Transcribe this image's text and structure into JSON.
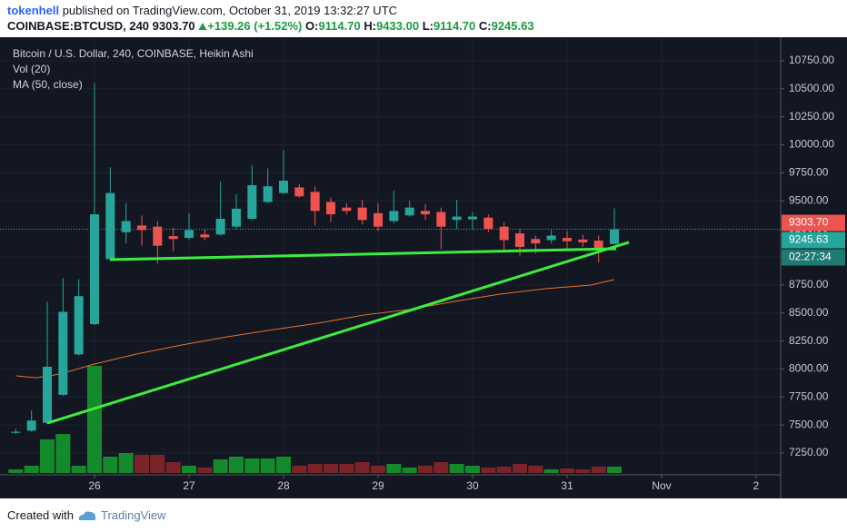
{
  "header": {
    "author": "tokenhell",
    "published": "published on TradingView.com, October 31, 2019 13:32:27 UTC",
    "symbol": "COINBASE:BTCUSD, 240",
    "last": "9303.70",
    "change": "+139.26 (+1.52%)",
    "ohlc": [
      {
        "label": "O:",
        "value": "9114.70"
      },
      {
        "label": "H:",
        "value": "9433.00"
      },
      {
        "label": "L:",
        "value": "9114.70"
      },
      {
        "label": "C:",
        "value": "9245.63"
      }
    ]
  },
  "chart_data": {
    "type": "candlestick",
    "title": "Bitcoin / U.S. Dollar, 240, COINBASE, Heikin Ashi",
    "x": [
      25.1667,
      25.3333,
      25.5,
      25.6667,
      25.8333,
      26,
      26.1667,
      26.3333,
      26.5,
      26.6667,
      26.8333,
      27,
      27.1667,
      27.3333,
      27.5,
      27.6667,
      27.8333,
      28,
      28.1667,
      28.3333,
      28.5,
      28.6667,
      28.8333,
      29,
      29.1667,
      29.3333,
      29.5,
      29.6667,
      29.8333,
      30,
      30.1667,
      30.3333,
      30.5,
      30.6667,
      30.8333,
      31,
      31.1667,
      31.3333,
      31.5
    ],
    "open": [
      7430,
      7450,
      7520,
      7770,
      8130,
      8400,
      8980,
      9220,
      9280,
      9270,
      9185,
      9170,
      9200,
      9200,
      9270,
      9340,
      9490,
      9570,
      9620,
      9580,
      9490,
      9440,
      9440,
      9390,
      9320,
      9370,
      9410,
      9400,
      9330,
      9335,
      9350,
      9270,
      9210,
      9160,
      9150,
      9170,
      9155,
      9145,
      9114.7
    ],
    "high": [
      7470,
      7630,
      8600,
      8810,
      8800,
      10550,
      9800,
      9480,
      9370,
      9320,
      9260,
      9390,
      9250,
      9670,
      9560,
      9820,
      9790,
      9950,
      9650,
      9630,
      9530,
      9480,
      9510,
      9480,
      9590,
      9500,
      9470,
      9440,
      9510,
      9400,
      9380,
      9310,
      9250,
      9190,
      9240,
      9230,
      9200,
      9190,
      9433
    ],
    "low": [
      7420,
      7440,
      7510,
      7760,
      8120,
      8390,
      8970,
      9120,
      9100,
      8940,
      9050,
      9150,
      9150,
      9190,
      9250,
      9330,
      9480,
      9560,
      9530,
      9280,
      9310,
      9380,
      9290,
      9230,
      9300,
      9360,
      9330,
      9070,
      9250,
      9240,
      9220,
      9040,
      9010,
      9030,
      9120,
      9070,
      9090,
      8950,
      9114.7
    ],
    "close": [
      7440,
      7540,
      8020,
      8510,
      8650,
      9380,
      9570,
      9320,
      9240,
      9100,
      9160,
      9240,
      9175,
      9340,
      9430,
      9640,
      9630,
      9680,
      9540,
      9410,
      9380,
      9410,
      9330,
      9270,
      9410,
      9440,
      9380,
      9270,
      9360,
      9360,
      9250,
      9150,
      9090,
      9120,
      9190,
      9140,
      9130,
      9080,
      9245.63
    ],
    "up_color": "#26a69a",
    "down_color": "#ef5350",
    "volume": {
      "name": "Vol (20)",
      "up_color": "#138a2b",
      "down_color": "#7b2327",
      "values": [
        4,
        8,
        37,
        43,
        8,
        118,
        18,
        22,
        20,
        20,
        12,
        8,
        6,
        15,
        18,
        16,
        16,
        18,
        8,
        10,
        10,
        10,
        12,
        8,
        10,
        6,
        8,
        12,
        10,
        8,
        6,
        7,
        10,
        8,
        4,
        5,
        4,
        7,
        7
      ]
    },
    "ma": {
      "name": "MA (50, close)",
      "color": "#e8732a",
      "x": [
        25.173,
        25.385,
        25.577,
        25.769,
        25.962,
        26.442,
        26.923,
        27.404,
        27.885,
        28.365,
        28.846,
        29.327,
        29.808,
        30.288,
        30.769,
        31.25,
        31.5
      ],
      "values": [
        7939,
        7922,
        7947,
        7987,
        8036,
        8133,
        8214,
        8287,
        8350,
        8409,
        8481,
        8530,
        8603,
        8668,
        8716,
        8749,
        8797
      ]
    },
    "trendlines": [
      {
        "color": "#3ded3d",
        "x": [
          26.163,
          31.519
        ],
        "values": [
          8976,
          9073
        ]
      },
      {
        "color": "#3ded3d",
        "x": [
          25.5,
          31.654
        ],
        "values": [
          7517,
          9130
        ]
      }
    ],
    "price_labels": [
      {
        "value": 9303.7,
        "label": "9303.70",
        "color": "#ef5350"
      },
      {
        "value": 9245.63,
        "label": "9245.63",
        "color": "#26a69a"
      }
    ],
    "countdown": "02:27:34",
    "xlim": [
      25.077,
      33.25
    ],
    "ylim": [
      7064,
      10952
    ],
    "xticks": [
      26,
      27,
      28,
      29,
      30,
      31,
      {
        "value": 32,
        "label": "Nov"
      },
      {
        "value": 33,
        "label": "2"
      }
    ],
    "yticks": [
      {
        "value": 7250,
        "label": "7250.00"
      },
      {
        "value": 7500,
        "label": "7500.00"
      },
      {
        "value": 7750,
        "label": "7750.00"
      },
      {
        "value": 8000,
        "label": "8000.00"
      },
      {
        "value": 8250,
        "label": "8250.00"
      },
      {
        "value": 8500,
        "label": "8500.00"
      },
      {
        "value": 8750,
        "label": "8750.00"
      },
      {
        "value": 9000,
        "label": "9000.00"
      },
      {
        "value": 9250,
        "label": "9250.00"
      },
      {
        "value": 9500,
        "label": "9500.00"
      },
      {
        "value": 9750,
        "label": "9750.00"
      },
      {
        "value": 10000,
        "label": "10000.00"
      },
      {
        "value": 10250,
        "label": "10250.00"
      },
      {
        "value": 10500,
        "label": "10500.00"
      },
      {
        "value": 10750,
        "label": "10750.00"
      }
    ],
    "grid": true
  },
  "footer": {
    "prefix": "Created with",
    "brand": "TradingView"
  }
}
